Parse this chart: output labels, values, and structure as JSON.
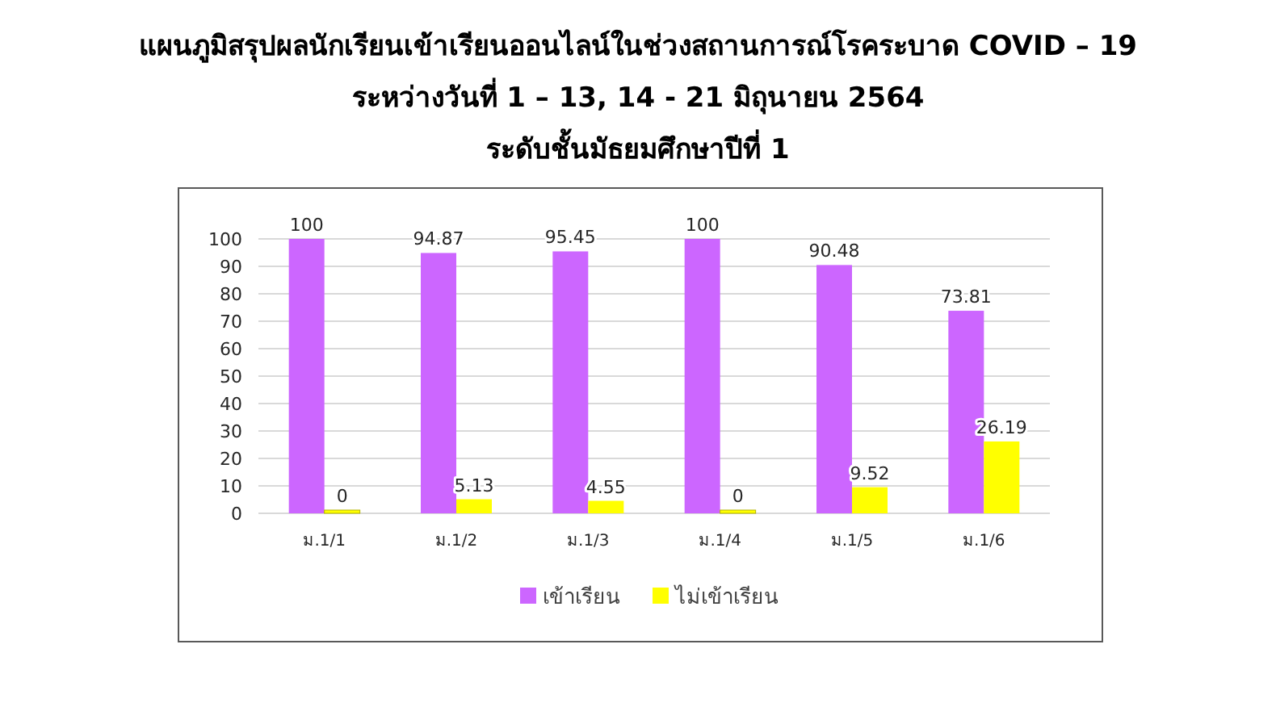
{
  "chart_data": {
    "type": "bar",
    "title": "แผนภูมิสรุปผลนักเรียนเข้าเรียนออนไลน์ในช่วงสถานการณ์โรคระบาด COVID – 19",
    "subtitle": "ระหว่างวันที่ 1 – 13, 14 - 21 มิถุนายน  2564",
    "annotations": [
      "ระดับชั้นมัธยมศึกษาปีที่ 1"
    ],
    "categories": [
      "ม.1/1",
      "ม.1/2",
      "ม.1/3",
      "ม.1/4",
      "ม.1/5",
      "ม.1/6"
    ],
    "series": [
      {
        "name": "เข้าเรียน",
        "color": "#cc66ff",
        "values": [
          100,
          94.87,
          95.45,
          100,
          90.48,
          73.81
        ]
      },
      {
        "name": "ไม่เข้าเรียน",
        "color": "#ffff00",
        "values": [
          0,
          5.13,
          4.55,
          0,
          9.52,
          26.19
        ]
      }
    ],
    "ylim": [
      0,
      100
    ],
    "yticks": [
      0,
      10,
      20,
      30,
      40,
      50,
      60,
      70,
      80,
      90,
      100
    ],
    "grid": "y",
    "legend": "bottom",
    "data_labels": true
  }
}
